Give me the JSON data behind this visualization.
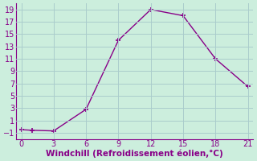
{
  "x": [
    0,
    1,
    3,
    6,
    9,
    12,
    15,
    18,
    21
  ],
  "y": [
    -0.5,
    -0.6,
    -0.7,
    2.8,
    14.0,
    19.0,
    18.0,
    11.0,
    6.5
  ],
  "line_color": "#880088",
  "marker": "+",
  "marker_size": 5,
  "marker_linewidth": 1.2,
  "line_linewidth": 1.0,
  "linestyle": "-",
  "background_color": "#cceedd",
  "grid_color": "#aacccc",
  "xlabel": "Windchill (Refroidissement éolien,°C)",
  "xlabel_color": "#880088",
  "xlabel_fontsize": 7.5,
  "tick_color": "#880088",
  "tick_fontsize": 7,
  "xlim": [
    -0.5,
    21.5
  ],
  "ylim": [
    -2.0,
    20.0
  ],
  "xticks": [
    0,
    3,
    6,
    9,
    12,
    15,
    18,
    21
  ],
  "yticks": [
    -1,
    1,
    3,
    5,
    7,
    9,
    11,
    13,
    15,
    17,
    19
  ]
}
